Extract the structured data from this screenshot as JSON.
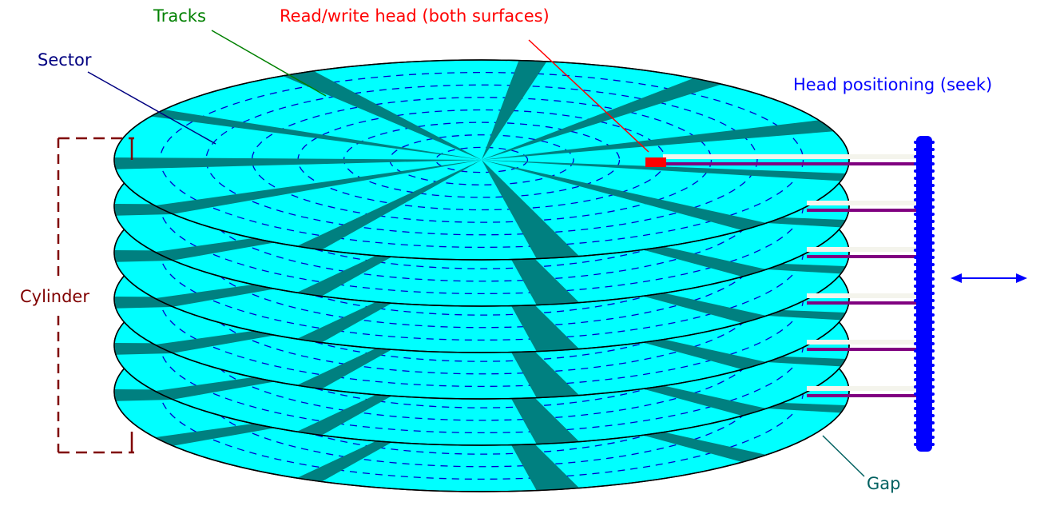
{
  "labels": {
    "tracks": "Tracks",
    "read_write_head": "Read/write head (both surfaces)",
    "sector": "Sector",
    "head_positioning": "Head positioning (seek)",
    "cylinder": "Cylinder",
    "gap": "Gap"
  },
  "colors": {
    "platter_fill": "#00ffff",
    "sector_band": "#008080",
    "track_dash": "#0000cc",
    "tracks_label": "#008000",
    "read_write_label": "#ff0000",
    "sector_label": "#000080",
    "head_positioning_label": "#0000ff",
    "cylinder_label": "#800000",
    "gap_label": "#004040",
    "arm": "#800080",
    "head": "#ff0000",
    "actuator": "#0000ff"
  },
  "platter_count": 6
}
